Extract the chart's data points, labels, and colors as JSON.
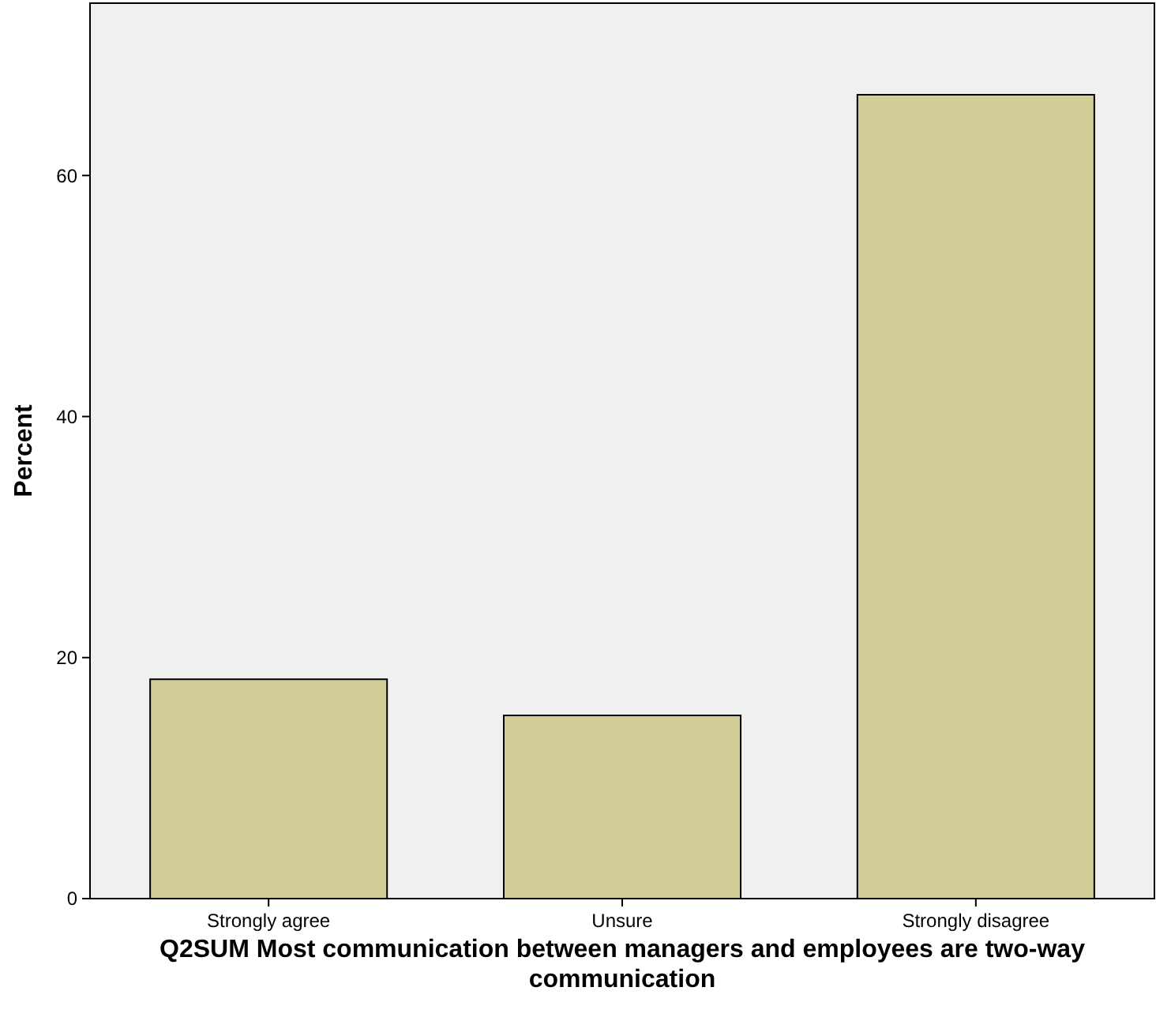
{
  "chart_data": {
    "type": "bar",
    "xlabel": "Q2SUM Most communication between managers and employees are two-way communication",
    "ylabel": "Percent",
    "categories": [
      "Strongly agree",
      "Unsure",
      "Strongly disagree"
    ],
    "values": [
      18.2,
      15.2,
      66.7
    ],
    "color": "#d3ce97",
    "ylim": [
      0,
      74.3
    ],
    "yticks": [
      0,
      20,
      40,
      60
    ],
    "grid": false
  }
}
